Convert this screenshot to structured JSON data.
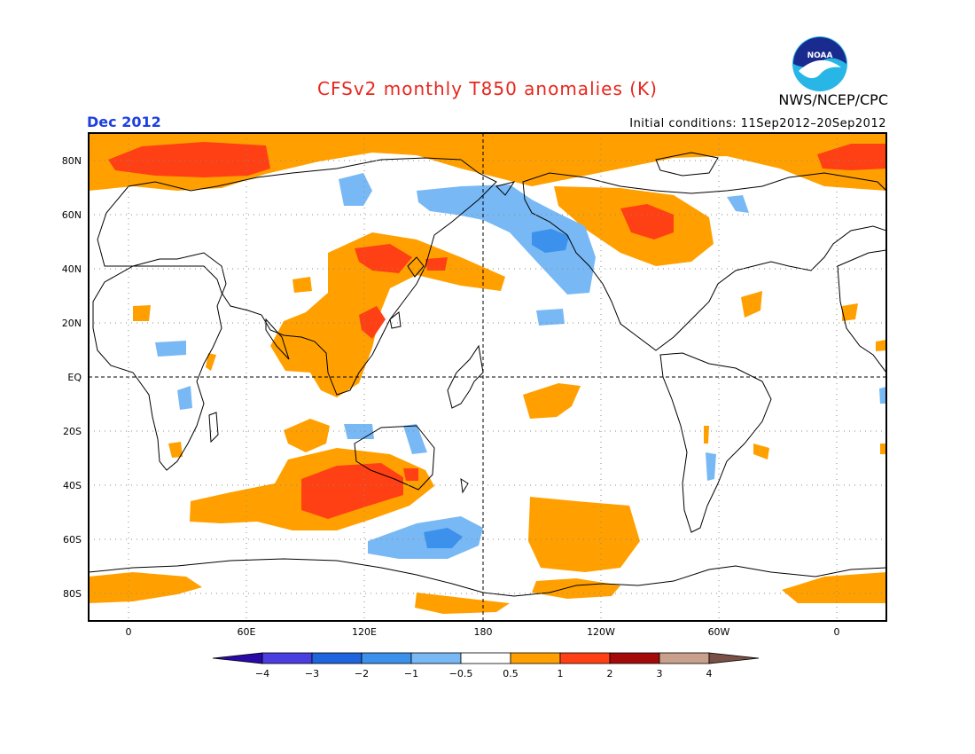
{
  "title": "CFSv2 monthly T850 anomalies (K)",
  "valid_month": "Dec 2012",
  "initial_conditions": "Initial conditions: 11Sep2012–20Sep2012",
  "agency": "NWS/NCEP/CPC",
  "logo_text": "NOAA",
  "lat_labels": [
    "80N",
    "60N",
    "40N",
    "20N",
    "EQ",
    "20S",
    "40S",
    "60S",
    "80S"
  ],
  "lon_labels": [
    "0",
    "60E",
    "120E",
    "180",
    "120W",
    "60W",
    "0"
  ],
  "colorbar": {
    "labels": [
      "−4",
      "−3",
      "−2",
      "−1",
      "−0.5",
      "0.5",
      "1",
      "2",
      "3",
      "4"
    ],
    "colors": [
      "#2a0aa6",
      "#4a3ee0",
      "#1e64dc",
      "#3c91ec",
      "#78b9f5",
      "#ffffff",
      "#ffa000",
      "#ff4014",
      "#a50a0a",
      "#c8a08c",
      "#785046"
    ]
  }
}
